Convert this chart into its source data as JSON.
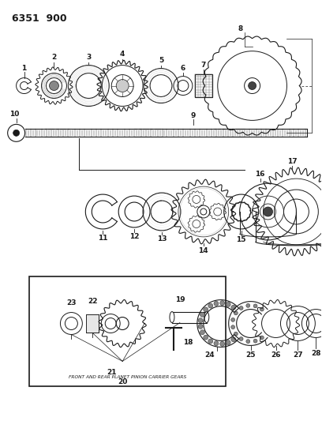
{
  "title": "6351  900",
  "bg_color": "#ffffff",
  "fg_color": "#1a1a1a",
  "fig_width": 4.08,
  "fig_height": 5.33,
  "dpi": 100,
  "inset_label": "FRONT AND REAR PLANET PINION CARRIER GEARS"
}
